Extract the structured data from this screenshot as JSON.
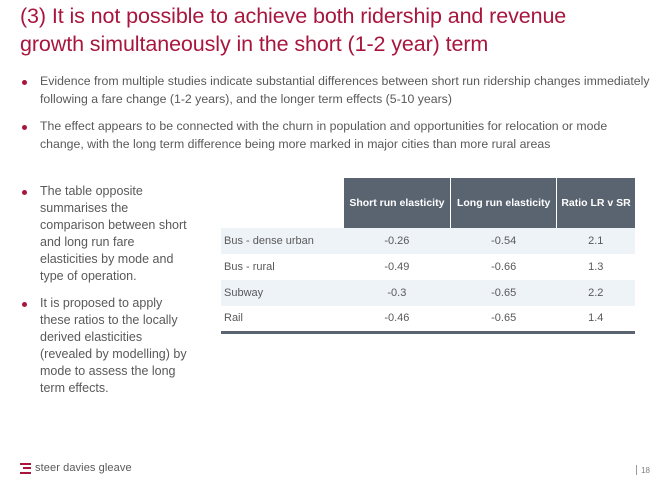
{
  "slide": {
    "title_lines": [
      "(3) It is not possible to achieve both ridership and revenue",
      "growth simultaneously in the short (1-2 year) term"
    ],
    "top_bullets": [
      "Evidence from multiple studies indicate substantial differences between short run ridership changes immediately following a fare change (1-2 years), and the longer term effects (5-10 years)",
      "The effect appears to be connected with the churn in population and opportunities for relocation or mode change, with the long term difference being more marked in major cities than more rural areas"
    ],
    "left_bullets": [
      "The table opposite summarises the comparison between short and long run fare elasticities by mode and type of operation.",
      "It is proposed to apply these ratios to the locally derived elasticities (revealed by modelling)  by mode  to assess the long term effects."
    ],
    "table": {
      "headers": [
        "",
        "Short run elasticity",
        "Long run elasticity",
        "Ratio LR v SR"
      ],
      "rows": [
        {
          "mode": "Bus - dense urban",
          "short_run": "-0.26",
          "long_run": "-0.54",
          "ratio": "2.1"
        },
        {
          "mode": "Bus - rural",
          "short_run": "-0.49",
          "long_run": "-0.66",
          "ratio": "1.3"
        },
        {
          "mode": "Subway",
          "short_run": "-0.3",
          "long_run": "-0.65",
          "ratio": "2.2"
        },
        {
          "mode": "Rail",
          "short_run": "-0.46",
          "long_run": "-0.65",
          "ratio": "1.4"
        }
      ]
    },
    "footer": {
      "logo_icon": "stacked-bars-logo-icon",
      "logo_text": "steer davies gleave",
      "page_number": "18"
    },
    "colors": {
      "accent": "#a8163e",
      "header_bg": "#5a6370",
      "row_shade": "#eef3f8",
      "body_text": "#595959"
    }
  }
}
